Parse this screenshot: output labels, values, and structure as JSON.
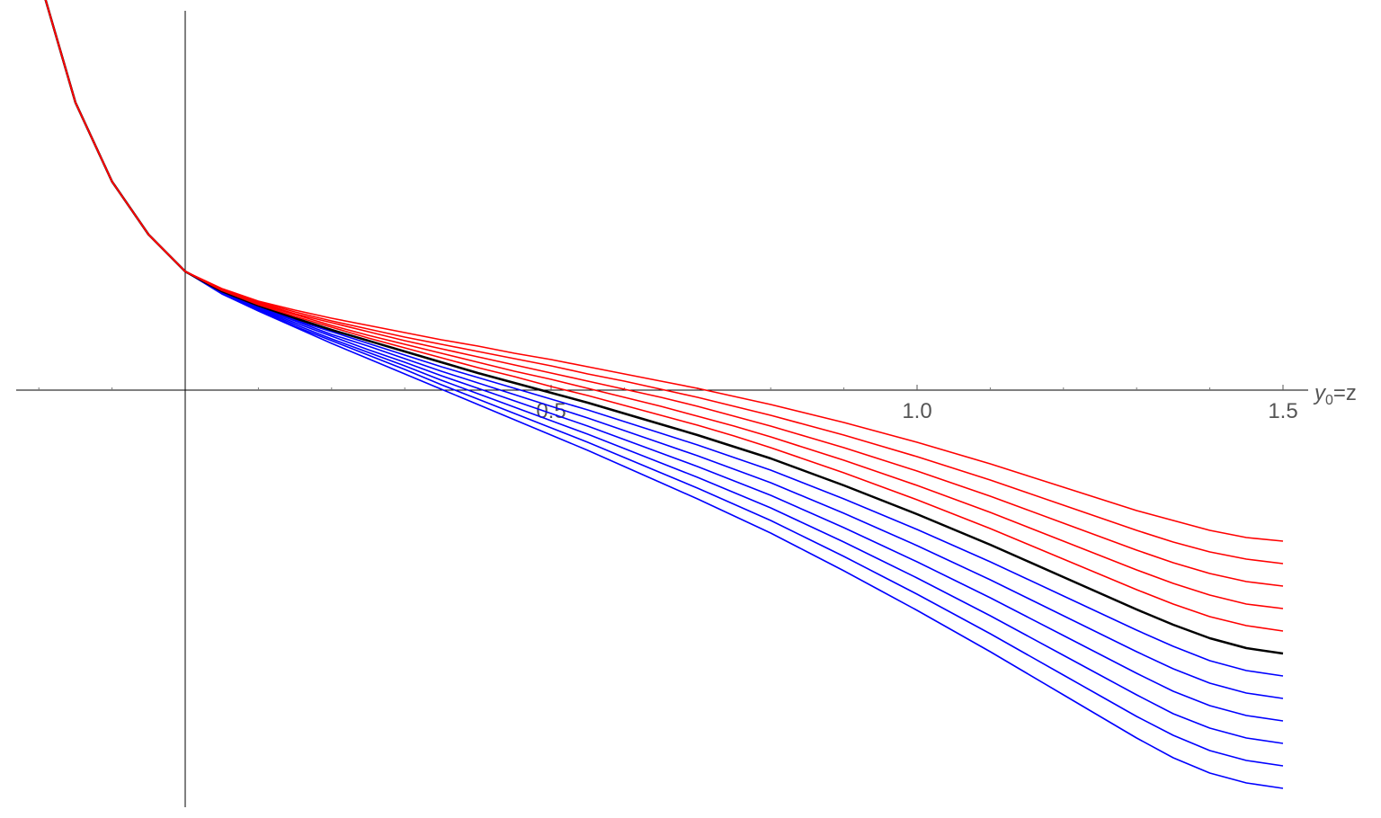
{
  "chart_data": {
    "type": "line",
    "title": "",
    "xlabel": "y₀=z",
    "ylabel": "",
    "xlim": [
      -0.23,
      1.5
    ],
    "x_ticks": [
      {
        "value": 0.5,
        "label": "0.5"
      },
      {
        "value": 1.0,
        "label": "1.0"
      },
      {
        "value": 1.5,
        "label": "1.5"
      }
    ],
    "y_tick_labels_shown": false,
    "grid": false,
    "legend": "none",
    "curve_x": [
      -0.2,
      -0.15,
      -0.1,
      -0.05,
      0,
      0.05,
      0.1,
      0.15,
      0.2,
      0.25,
      0.3,
      0.35,
      0.4,
      0.45,
      0.5,
      0.55,
      0.6,
      0.65,
      0.7,
      0.75,
      0.8,
      0.85,
      0.9,
      0.95,
      1.0,
      1.05,
      1.1,
      1.15,
      1.2,
      1.25,
      1.3,
      1.35,
      1.4,
      1.45,
      1.5
    ],
    "series": [
      {
        "color": "#ff0000",
        "values": [
          4.6,
          3.2,
          2.32,
          1.73,
          1.32,
          1.13,
          0.99,
          0.89,
          0.8,
          0.72,
          0.64,
          0.56,
          0.49,
          0.41,
          0.34,
          0.26,
          0.18,
          0.1,
          0.02,
          -0.07,
          -0.16,
          -0.26,
          -0.36,
          -0.47,
          -0.58,
          -0.7,
          -0.82,
          -0.95,
          -1.08,
          -1.21,
          -1.34,
          -1.45,
          -1.56,
          -1.64,
          -1.68
        ]
      },
      {
        "color": "#ff0000",
        "values": [
          4.6,
          3.2,
          2.32,
          1.73,
          1.32,
          1.12,
          0.98,
          0.87,
          0.77,
          0.68,
          0.59,
          0.51,
          0.43,
          0.35,
          0.27,
          0.18,
          0.1,
          0.01,
          -0.08,
          -0.18,
          -0.28,
          -0.39,
          -0.5,
          -0.62,
          -0.74,
          -0.87,
          -1.0,
          -1.14,
          -1.28,
          -1.42,
          -1.56,
          -1.69,
          -1.8,
          -1.88,
          -1.93
        ]
      },
      {
        "color": "#ff0000",
        "values": [
          4.6,
          3.2,
          2.32,
          1.73,
          1.32,
          1.12,
          0.97,
          0.85,
          0.75,
          0.65,
          0.55,
          0.46,
          0.37,
          0.28,
          0.19,
          0.1,
          0.01,
          -0.08,
          -0.18,
          -0.29,
          -0.4,
          -0.52,
          -0.64,
          -0.77,
          -0.9,
          -1.04,
          -1.18,
          -1.33,
          -1.48,
          -1.63,
          -1.78,
          -1.92,
          -2.04,
          -2.13,
          -2.18
        ]
      },
      {
        "color": "#ff0000",
        "values": [
          4.6,
          3.2,
          2.32,
          1.73,
          1.32,
          1.11,
          0.96,
          0.84,
          0.72,
          0.61,
          0.51,
          0.41,
          0.31,
          0.21,
          0.12,
          0.02,
          -0.08,
          -0.18,
          -0.29,
          -0.4,
          -0.52,
          -0.65,
          -0.78,
          -0.92,
          -1.06,
          -1.21,
          -1.36,
          -1.52,
          -1.68,
          -1.84,
          -2.0,
          -2.15,
          -2.28,
          -2.38,
          -2.43
        ]
      },
      {
        "color": "#ff0000",
        "values": [
          4.6,
          3.2,
          2.32,
          1.73,
          1.32,
          1.11,
          0.95,
          0.82,
          0.7,
          0.58,
          0.47,
          0.36,
          0.25,
          0.15,
          0.04,
          -0.06,
          -0.17,
          -0.28,
          -0.39,
          -0.51,
          -0.64,
          -0.78,
          -0.92,
          -1.07,
          -1.22,
          -1.38,
          -1.54,
          -1.71,
          -1.88,
          -2.05,
          -2.22,
          -2.38,
          -2.52,
          -2.62,
          -2.68
        ]
      },
      {
        "color": "#000000",
        "values": [
          4.6,
          3.2,
          2.32,
          1.73,
          1.32,
          1.1,
          0.94,
          0.8,
          0.67,
          0.55,
          0.43,
          0.31,
          0.19,
          0.08,
          -0.03,
          -0.14,
          -0.26,
          -0.38,
          -0.5,
          -0.63,
          -0.76,
          -0.91,
          -1.06,
          -1.22,
          -1.38,
          -1.55,
          -1.72,
          -1.9,
          -2.08,
          -2.26,
          -2.44,
          -2.61,
          -2.76,
          -2.87,
          -2.93
        ]
      },
      {
        "color": "#0000ff",
        "values": [
          4.6,
          3.2,
          2.32,
          1.73,
          1.32,
          1.1,
          0.93,
          0.78,
          0.65,
          0.52,
          0.39,
          0.26,
          0.14,
          0.02,
          -0.1,
          -0.22,
          -0.35,
          -0.48,
          -0.61,
          -0.75,
          -0.89,
          -1.05,
          -1.21,
          -1.38,
          -1.55,
          -1.73,
          -1.91,
          -2.1,
          -2.29,
          -2.48,
          -2.67,
          -2.85,
          -3.01,
          -3.12,
          -3.18
        ]
      },
      {
        "color": "#0000ff",
        "values": [
          4.6,
          3.2,
          2.32,
          1.73,
          1.32,
          1.09,
          0.92,
          0.77,
          0.62,
          0.49,
          0.35,
          0.21,
          0.08,
          -0.05,
          -0.18,
          -0.31,
          -0.45,
          -0.59,
          -0.73,
          -0.88,
          -1.03,
          -1.2,
          -1.37,
          -1.55,
          -1.73,
          -1.92,
          -2.11,
          -2.31,
          -2.51,
          -2.71,
          -2.91,
          -3.1,
          -3.26,
          -3.37,
          -3.43
        ]
      },
      {
        "color": "#0000ff",
        "values": [
          4.6,
          3.2,
          2.32,
          1.73,
          1.32,
          1.09,
          0.91,
          0.75,
          0.6,
          0.45,
          0.31,
          0.16,
          0.02,
          -0.12,
          -0.26,
          -0.4,
          -0.55,
          -0.7,
          -0.85,
          -1.01,
          -1.17,
          -1.35,
          -1.53,
          -1.72,
          -1.91,
          -2.11,
          -2.31,
          -2.52,
          -2.73,
          -2.94,
          -3.15,
          -3.35,
          -3.51,
          -3.62,
          -3.68
        ]
      },
      {
        "color": "#0000ff",
        "values": [
          4.6,
          3.2,
          2.32,
          1.73,
          1.32,
          1.08,
          0.9,
          0.73,
          0.57,
          0.42,
          0.27,
          0.11,
          -0.04,
          -0.19,
          -0.34,
          -0.49,
          -0.65,
          -0.81,
          -0.97,
          -1.14,
          -1.31,
          -1.5,
          -1.69,
          -1.89,
          -2.09,
          -2.3,
          -2.51,
          -2.73,
          -2.95,
          -3.17,
          -3.39,
          -3.6,
          -3.76,
          -3.87,
          -3.93
        ]
      },
      {
        "color": "#0000ff",
        "values": [
          4.6,
          3.2,
          2.32,
          1.73,
          1.32,
          1.08,
          0.89,
          0.71,
          0.55,
          0.39,
          0.23,
          0.06,
          -0.1,
          -0.26,
          -0.42,
          -0.58,
          -0.75,
          -0.92,
          -1.09,
          -1.27,
          -1.45,
          -1.65,
          -1.85,
          -2.06,
          -2.27,
          -2.49,
          -2.71,
          -2.94,
          -3.17,
          -3.4,
          -3.63,
          -3.84,
          -4.01,
          -4.12,
          -4.18
        ]
      },
      {
        "color": "#0000ff",
        "values": [
          4.6,
          3.2,
          2.32,
          1.73,
          1.32,
          1.07,
          0.88,
          0.7,
          0.52,
          0.35,
          0.18,
          0.01,
          -0.16,
          -0.33,
          -0.5,
          -0.67,
          -0.85,
          -1.03,
          -1.21,
          -1.4,
          -1.59,
          -1.8,
          -2.01,
          -2.23,
          -2.45,
          -2.68,
          -2.91,
          -3.15,
          -3.39,
          -3.63,
          -3.87,
          -4.09,
          -4.26,
          -4.37,
          -4.43
        ]
      }
    ]
  }
}
